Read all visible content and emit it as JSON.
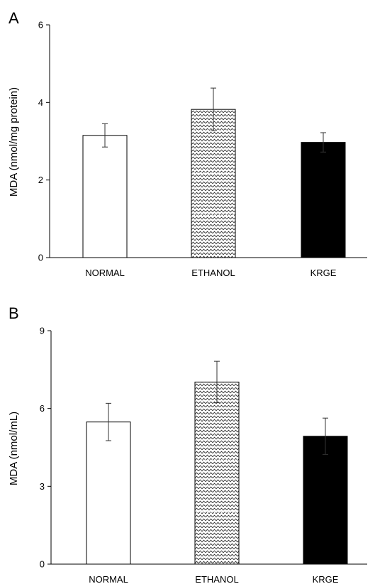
{
  "chart_data": [
    {
      "panel": "A",
      "type": "bar",
      "categories": [
        "NORMAL",
        "ETHANOL",
        "KRGE"
      ],
      "values": [
        3.15,
        3.82,
        2.97
      ],
      "errors": [
        0.3,
        0.55,
        0.25
      ],
      "ylabel": "MDA (nmol/mg protein)",
      "xlabel": "",
      "ylim": [
        0,
        6
      ],
      "yticks": [
        0,
        2,
        4,
        6
      ],
      "grid": false,
      "legend": "none",
      "bar_styles": [
        "white",
        "zigzag-pattern",
        "black"
      ]
    },
    {
      "panel": "B",
      "type": "bar",
      "categories": [
        "NORMAL",
        "ETHANOL",
        "KRGE"
      ],
      "values": [
        5.48,
        7.02,
        4.93
      ],
      "errors": [
        0.72,
        0.8,
        0.7
      ],
      "ylabel": "MDA (nmol/mL)",
      "xlabel": "",
      "ylim": [
        0,
        9
      ],
      "yticks": [
        0,
        3,
        6,
        9
      ],
      "grid": false,
      "legend": "none",
      "bar_styles": [
        "white",
        "zigzag-pattern",
        "black"
      ]
    }
  ]
}
